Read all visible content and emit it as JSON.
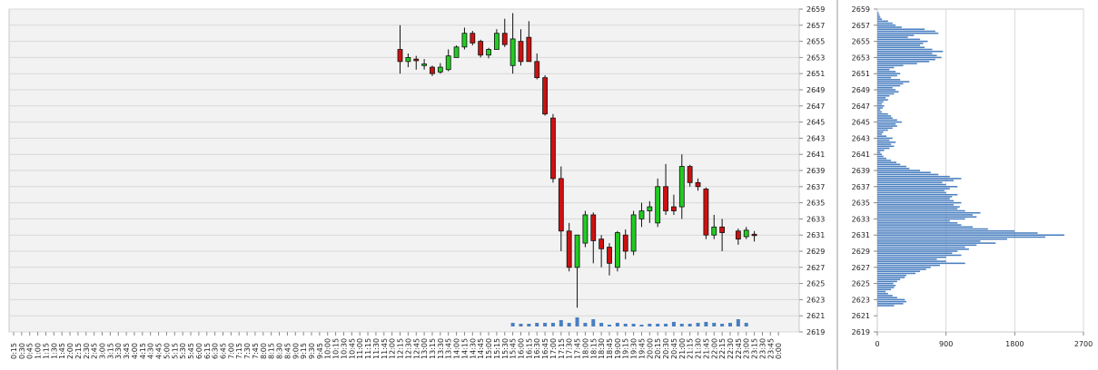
{
  "chart_data": [
    {
      "type": "candlestick",
      "y_ticks": [
        2619,
        2621,
        2623,
        2625,
        2627,
        2629,
        2631,
        2633,
        2635,
        2637,
        2639,
        2641,
        2643,
        2645,
        2647,
        2649,
        2651,
        2653,
        2655,
        2657,
        2659
      ],
      "ylim": [
        2619,
        2659
      ],
      "grid": true,
      "x_ticks": [
        "0:15",
        "0:30",
        "0:45",
        "1:00",
        "1:15",
        "1:30",
        "1:45",
        "2:00",
        "2:15",
        "2:30",
        "2:45",
        "3:00",
        "3:15",
        "3:30",
        "3:45",
        "4:00",
        "4:15",
        "4:30",
        "4:45",
        "5:00",
        "5:15",
        "5:30",
        "5:45",
        "6:00",
        "6:15",
        "6:30",
        "6:45",
        "7:00",
        "7:15",
        "7:30",
        "7:45",
        "8:00",
        "8:15",
        "8:30",
        "8:45",
        "9:00",
        "9:15",
        "9:30",
        "9:45",
        "10:00",
        "10:15",
        "10:30",
        "10:45",
        "11:00",
        "11:15",
        "11:30",
        "11:45",
        "12:00",
        "12:15",
        "12:30",
        "12:45",
        "13:00",
        "13:15",
        "13:30",
        "13:45",
        "14:00",
        "14:15",
        "14:30",
        "14:45",
        "15:00",
        "15:15",
        "15:30",
        "15:45",
        "16:00",
        "16:15",
        "16:30",
        "16:45",
        "17:00",
        "17:15",
        "17:30",
        "17:45",
        "18:00",
        "18:15",
        "18:30",
        "18:45",
        "19:00",
        "19:15",
        "19:30",
        "19:45",
        "20:00",
        "20:15",
        "20:30",
        "20:45",
        "21:00",
        "21:15",
        "21:30",
        "21:45",
        "22:00",
        "22:15",
        "22:30",
        "22:45",
        "23:00",
        "23:15",
        "23:30",
        "23:45",
        "0:00"
      ],
      "candles": [
        {
          "t": "12:15",
          "o": 2654.0,
          "h": 2657.0,
          "l": 2651.0,
          "c": 2652.5
        },
        {
          "t": "12:30",
          "o": 2652.5,
          "h": 2653.5,
          "l": 2651.8,
          "c": 2653.0
        },
        {
          "t": "12:45",
          "o": 2652.8,
          "h": 2653.2,
          "l": 2651.5,
          "c": 2652.6
        },
        {
          "t": "13:00",
          "o": 2652.0,
          "h": 2652.8,
          "l": 2651.5,
          "c": 2652.2
        },
        {
          "t": "13:15",
          "o": 2651.8,
          "h": 2652.0,
          "l": 2650.7,
          "c": 2651.0
        },
        {
          "t": "13:30",
          "o": 2651.2,
          "h": 2652.3,
          "l": 2651.0,
          "c": 2651.8
        },
        {
          "t": "13:45",
          "o": 2651.5,
          "h": 2654.0,
          "l": 2651.3,
          "c": 2653.2
        },
        {
          "t": "14:00",
          "o": 2653.0,
          "h": 2654.5,
          "l": 2653.0,
          "c": 2654.3
        },
        {
          "t": "14:15",
          "o": 2654.3,
          "h": 2656.7,
          "l": 2654.0,
          "c": 2656.0
        },
        {
          "t": "14:30",
          "o": 2656.0,
          "h": 2656.3,
          "l": 2654.5,
          "c": 2654.8
        },
        {
          "t": "14:45",
          "o": 2655.0,
          "h": 2655.2,
          "l": 2653.0,
          "c": 2653.3
        },
        {
          "t": "15:00",
          "o": 2653.3,
          "h": 2654.2,
          "l": 2652.9,
          "c": 2654.0
        },
        {
          "t": "15:15",
          "o": 2654.0,
          "h": 2656.5,
          "l": 2654.0,
          "c": 2656.0
        },
        {
          "t": "15:30",
          "o": 2656.0,
          "h": 2657.8,
          "l": 2654.3,
          "c": 2654.6
        },
        {
          "t": "15:45",
          "o": 2652.0,
          "h": 2658.5,
          "l": 2651.0,
          "c": 2655.3
        },
        {
          "t": "16:00",
          "o": 2655.0,
          "h": 2656.5,
          "l": 2652.0,
          "c": 2652.5
        },
        {
          "t": "16:15",
          "o": 2655.5,
          "h": 2657.5,
          "l": 2652.5,
          "c": 2652.5
        },
        {
          "t": "16:30",
          "o": 2652.5,
          "h": 2653.5,
          "l": 2650.3,
          "c": 2650.5
        },
        {
          "t": "16:45",
          "o": 2650.5,
          "h": 2650.8,
          "l": 2645.8,
          "c": 2646.0
        },
        {
          "t": "17:00",
          "o": 2645.5,
          "h": 2646.0,
          "l": 2637.5,
          "c": 2638.0
        },
        {
          "t": "17:15",
          "o": 2638.0,
          "h": 2639.5,
          "l": 2629.0,
          "c": 2631.5
        },
        {
          "t": "17:30",
          "o": 2631.5,
          "h": 2632.5,
          "l": 2626.5,
          "c": 2627.0
        },
        {
          "t": "17:45",
          "o": 2627.0,
          "h": 2631.0,
          "l": 2622.0,
          "c": 2631.0
        },
        {
          "t": "18:00",
          "o": 2630.0,
          "h": 2634.0,
          "l": 2629.5,
          "c": 2633.5
        },
        {
          "t": "18:15",
          "o": 2633.5,
          "h": 2633.8,
          "l": 2627.5,
          "c": 2630.3
        },
        {
          "t": "18:30",
          "o": 2630.5,
          "h": 2631.0,
          "l": 2627.0,
          "c": 2629.3
        },
        {
          "t": "18:45",
          "o": 2629.5,
          "h": 2630.0,
          "l": 2626.0,
          "c": 2627.5
        },
        {
          "t": "19:00",
          "o": 2627.0,
          "h": 2631.5,
          "l": 2626.5,
          "c": 2631.3
        },
        {
          "t": "19:15",
          "o": 2631.0,
          "h": 2631.7,
          "l": 2628.0,
          "c": 2629.0
        },
        {
          "t": "19:30",
          "o": 2629.0,
          "h": 2634.0,
          "l": 2628.5,
          "c": 2633.5
        },
        {
          "t": "19:45",
          "o": 2633.0,
          "h": 2635.0,
          "l": 2632.0,
          "c": 2634.0
        },
        {
          "t": "20:00",
          "o": 2634.0,
          "h": 2635.2,
          "l": 2632.5,
          "c": 2634.5
        },
        {
          "t": "20:15",
          "o": 2632.5,
          "h": 2638.0,
          "l": 2632.0,
          "c": 2637.0
        },
        {
          "t": "20:30",
          "o": 2637.0,
          "h": 2639.8,
          "l": 2633.5,
          "c": 2634.0
        },
        {
          "t": "20:45",
          "o": 2634.5,
          "h": 2636.0,
          "l": 2633.5,
          "c": 2634.0
        },
        {
          "t": "21:00",
          "o": 2634.5,
          "h": 2641.0,
          "l": 2633.0,
          "c": 2639.5
        },
        {
          "t": "21:15",
          "o": 2639.5,
          "h": 2639.7,
          "l": 2637.0,
          "c": 2637.5
        },
        {
          "t": "21:30",
          "o": 2637.5,
          "h": 2638.0,
          "l": 2636.5,
          "c": 2637.0
        },
        {
          "t": "21:45",
          "o": 2636.7,
          "h": 2636.9,
          "l": 2630.5,
          "c": 2631.0
        },
        {
          "t": "22:00",
          "o": 2631.0,
          "h": 2633.5,
          "l": 2630.5,
          "c": 2632.0
        },
        {
          "t": "22:15",
          "o": 2632.0,
          "h": 2633.0,
          "l": 2629.0,
          "c": 2631.3
        },
        {
          "t": "22:45",
          "o": 2631.5,
          "h": 2631.8,
          "l": 2629.8,
          "c": 2630.5
        },
        {
          "t": "23:00",
          "o": 2630.8,
          "h": 2632.0,
          "l": 2630.5,
          "c": 2631.6
        },
        {
          "t": "23:15",
          "o": 2631.1,
          "h": 2631.5,
          "l": 2630.2,
          "c": 2631.0
        }
      ],
      "colors": {
        "up": "#22cc22",
        "down": "#cc1111",
        "volume": "#4a7fc0",
        "grid": "#d8d8d8",
        "plot_bg": "#f2f2f2"
      }
    },
    {
      "type": "bar",
      "orientation": "horizontal",
      "x_ticks": [
        0,
        900,
        1800,
        2700
      ],
      "xlim": [
        0,
        2700
      ],
      "y_ticks": [
        2619,
        2621,
        2623,
        2625,
        2627,
        2629,
        2631,
        2633,
        2635,
        2637,
        2639,
        2641,
        2643,
        2645,
        2647,
        2649,
        2651,
        2653,
        2655,
        2657,
        2659
      ],
      "ylim": [
        2619,
        2659
      ],
      "price_step": 0.25,
      "profile": [
        [
          2622.25,
          220
        ],
        [
          2622.5,
          340
        ],
        [
          2622.75,
          380
        ],
        [
          2623.0,
          360
        ],
        [
          2623.25,
          260
        ],
        [
          2623.5,
          200
        ],
        [
          2623.75,
          140
        ],
        [
          2624.0,
          110
        ],
        [
          2624.25,
          180
        ],
        [
          2624.5,
          220
        ],
        [
          2624.75,
          240
        ],
        [
          2625.0,
          210
        ],
        [
          2625.25,
          260
        ],
        [
          2625.5,
          300
        ],
        [
          2625.75,
          360
        ],
        [
          2626.0,
          380
        ],
        [
          2626.25,
          500
        ],
        [
          2626.5,
          560
        ],
        [
          2626.75,
          640
        ],
        [
          2627.0,
          700
        ],
        [
          2627.25,
          820
        ],
        [
          2627.5,
          1150
        ],
        [
          2627.75,
          900
        ],
        [
          2628.0,
          780
        ],
        [
          2628.25,
          900
        ],
        [
          2628.5,
          1100
        ],
        [
          2628.75,
          980
        ],
        [
          2629.0,
          1050
        ],
        [
          2629.25,
          1200
        ],
        [
          2629.5,
          1150
        ],
        [
          2629.75,
          1300
        ],
        [
          2630.0,
          1550
        ],
        [
          2630.25,
          1350
        ],
        [
          2630.5,
          1700
        ],
        [
          2630.75,
          2200
        ],
        [
          2631.0,
          2450
        ],
        [
          2631.25,
          2100
        ],
        [
          2631.5,
          1800
        ],
        [
          2631.75,
          1450
        ],
        [
          2632.0,
          1250
        ],
        [
          2632.25,
          1100
        ],
        [
          2632.5,
          1050
        ],
        [
          2632.75,
          950
        ],
        [
          2633.0,
          1150
        ],
        [
          2633.25,
          1300
        ],
        [
          2633.5,
          1250
        ],
        [
          2633.75,
          1350
        ],
        [
          2634.0,
          1150
        ],
        [
          2634.25,
          1050
        ],
        [
          2634.5,
          1080
        ],
        [
          2634.75,
          1000
        ],
        [
          2635.0,
          1100
        ],
        [
          2635.25,
          1000
        ],
        [
          2635.5,
          950
        ],
        [
          2635.75,
          980
        ],
        [
          2636.0,
          1050
        ],
        [
          2636.25,
          900
        ],
        [
          2636.5,
          880
        ],
        [
          2636.75,
          950
        ],
        [
          2637.0,
          1050
        ],
        [
          2637.25,
          900
        ],
        [
          2637.5,
          850
        ],
        [
          2637.75,
          1000
        ],
        [
          2638.0,
          1100
        ],
        [
          2638.25,
          950
        ],
        [
          2638.5,
          800
        ],
        [
          2638.75,
          700
        ],
        [
          2639.0,
          560
        ],
        [
          2639.25,
          420
        ],
        [
          2639.5,
          380
        ],
        [
          2639.75,
          300
        ],
        [
          2640.0,
          250
        ],
        [
          2640.25,
          180
        ],
        [
          2640.5,
          120
        ],
        [
          2640.75,
          80
        ],
        [
          2641.0,
          60
        ],
        [
          2641.25,
          40
        ],
        [
          2641.5,
          90
        ],
        [
          2641.75,
          160
        ],
        [
          2642.0,
          220
        ],
        [
          2642.25,
          180
        ],
        [
          2642.5,
          240
        ],
        [
          2642.75,
          160
        ],
        [
          2643.0,
          200
        ],
        [
          2643.25,
          120
        ],
        [
          2643.5,
          60
        ],
        [
          2643.75,
          80
        ],
        [
          2644.0,
          140
        ],
        [
          2644.25,
          200
        ],
        [
          2644.5,
          260
        ],
        [
          2644.75,
          240
        ],
        [
          2645.0,
          320
        ],
        [
          2645.25,
          260
        ],
        [
          2645.5,
          200
        ],
        [
          2645.75,
          180
        ],
        [
          2646.0,
          140
        ],
        [
          2646.25,
          60
        ],
        [
          2646.5,
          40
        ],
        [
          2646.75,
          70
        ],
        [
          2647.0,
          90
        ],
        [
          2647.25,
          60
        ],
        [
          2647.5,
          80
        ],
        [
          2647.75,
          140
        ],
        [
          2648.0,
          110
        ],
        [
          2648.25,
          160
        ],
        [
          2648.5,
          220
        ],
        [
          2648.75,
          280
        ],
        [
          2649.0,
          240
        ],
        [
          2649.25,
          200
        ],
        [
          2649.5,
          300
        ],
        [
          2649.75,
          340
        ],
        [
          2650.0,
          420
        ],
        [
          2650.25,
          300
        ],
        [
          2650.5,
          180
        ],
        [
          2650.75,
          260
        ],
        [
          2651.0,
          300
        ],
        [
          2651.25,
          240
        ],
        [
          2651.5,
          160
        ],
        [
          2651.75,
          220
        ],
        [
          2652.0,
          340
        ],
        [
          2652.25,
          520
        ],
        [
          2652.5,
          680
        ],
        [
          2652.75,
          760
        ],
        [
          2653.0,
          840
        ],
        [
          2653.25,
          780
        ],
        [
          2653.5,
          720
        ],
        [
          2653.75,
          860
        ],
        [
          2654.0,
          720
        ],
        [
          2654.25,
          620
        ],
        [
          2654.5,
          560
        ],
        [
          2654.75,
          600
        ],
        [
          2655.0,
          660
        ],
        [
          2655.25,
          560
        ],
        [
          2655.5,
          400
        ],
        [
          2655.75,
          480
        ],
        [
          2656.0,
          800
        ],
        [
          2656.25,
          760
        ],
        [
          2656.5,
          620
        ],
        [
          2656.75,
          320
        ],
        [
          2657.0,
          240
        ],
        [
          2657.25,
          200
        ],
        [
          2657.5,
          140
        ],
        [
          2657.75,
          60
        ],
        [
          2658.0,
          40
        ],
        [
          2658.25,
          30
        ],
        [
          2658.5,
          20
        ]
      ],
      "colors": {
        "bar": "#4a7fc0",
        "grid": "#d8d8d8",
        "plot_bg": "#ffffff"
      }
    }
  ]
}
